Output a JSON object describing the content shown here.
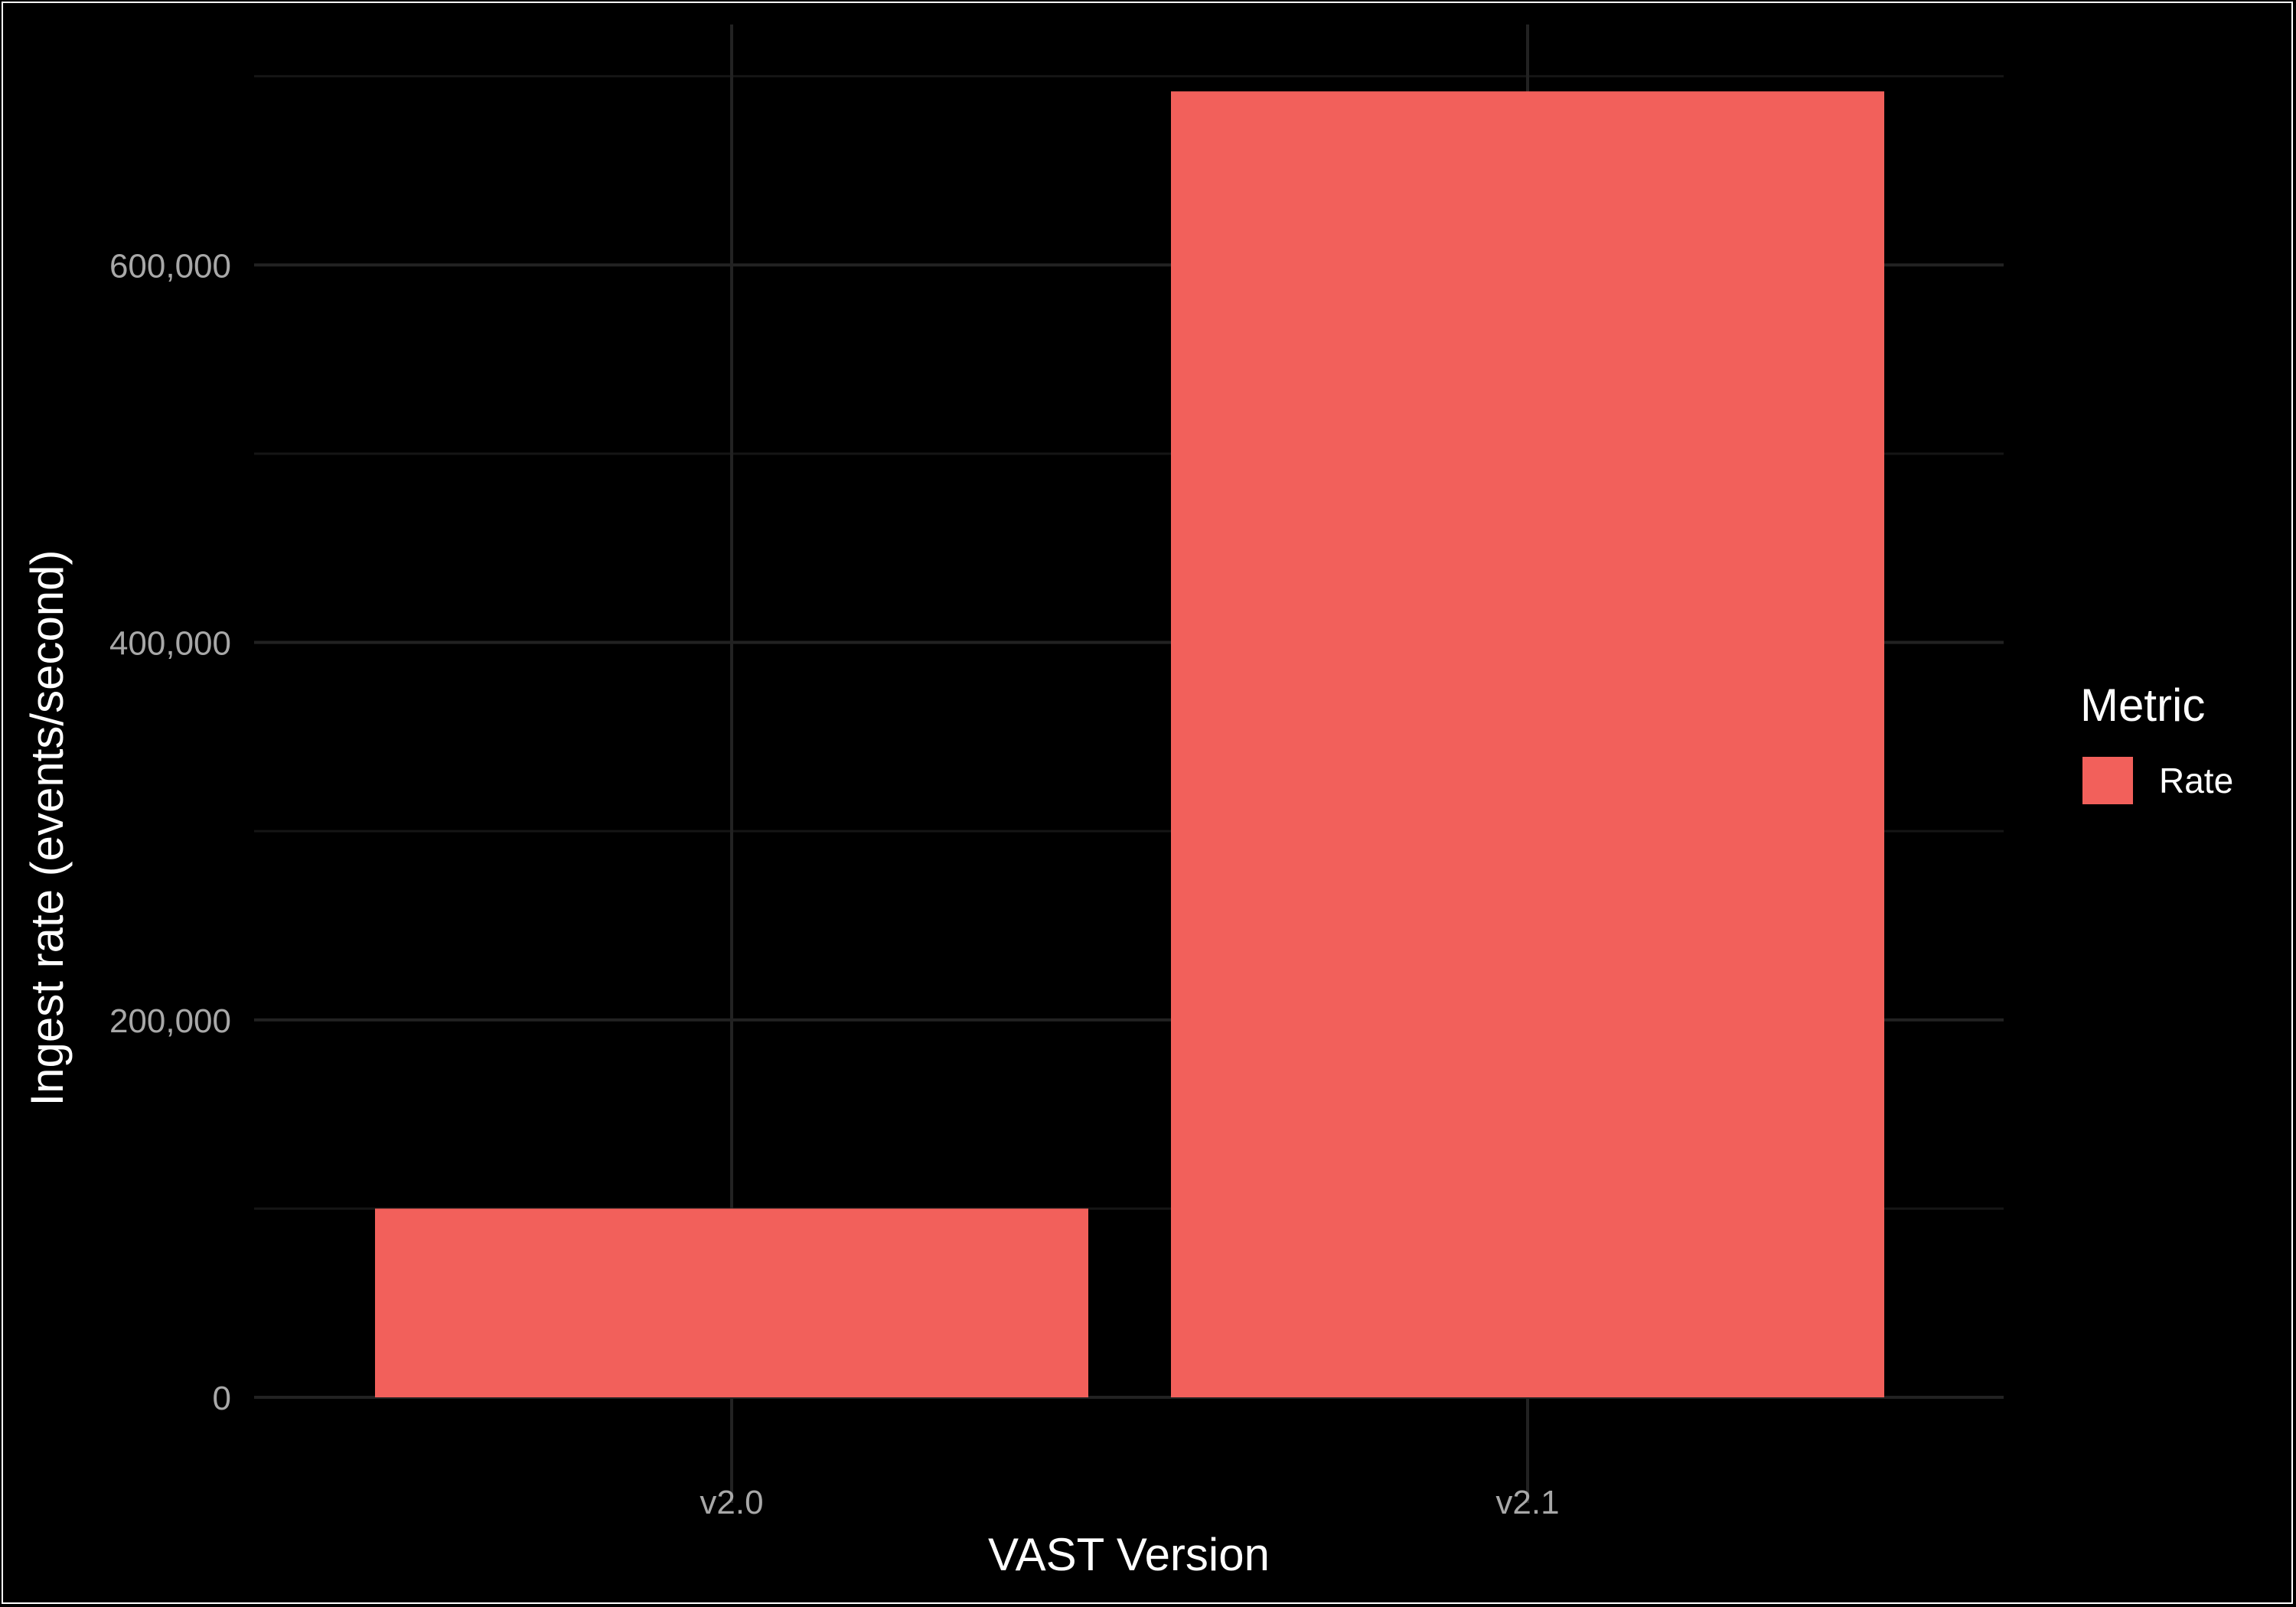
{
  "chart_data": {
    "type": "bar",
    "categories": [
      "v2.0",
      "v2.1"
    ],
    "values": [
      100000,
      692000
    ],
    "xlabel": "VAST Version",
    "ylabel": "Ingest rate (events/second)",
    "ylim": [
      0,
      700000
    ],
    "y_ticks": [
      0,
      200000,
      400000,
      600000
    ],
    "y_tick_labels": [
      "0",
      "200,000",
      "400,000",
      "600,000"
    ],
    "y_minor_ticks": [
      100000,
      300000,
      500000,
      700000
    ],
    "grid": true,
    "legend": {
      "title": "Metric",
      "position": "right",
      "items": [
        {
          "label": "Rate",
          "color": "#F2605B"
        }
      ]
    },
    "bar_color": "#F2605B",
    "background": "#000000"
  }
}
